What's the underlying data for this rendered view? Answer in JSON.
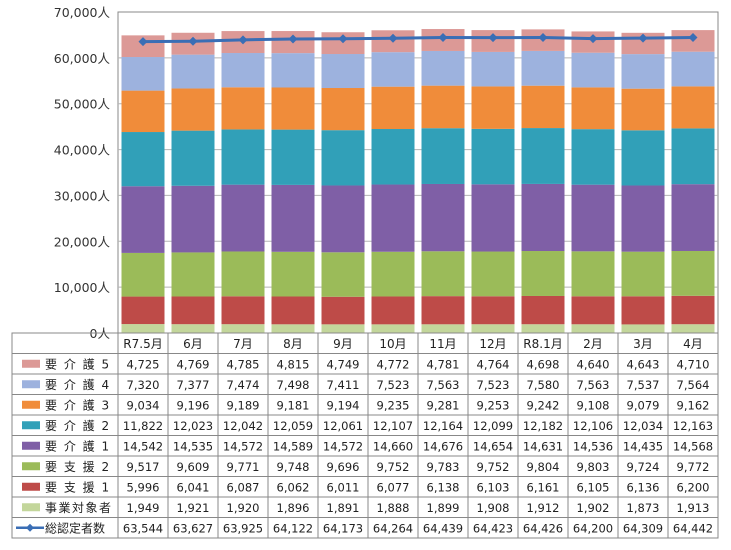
{
  "chart_data": {
    "type": "bar",
    "stacked": true,
    "categories": [
      "R7.5月",
      "6月",
      "7月",
      "8月",
      "9月",
      "10月",
      "11月",
      "12月",
      "R8.1月",
      "2月",
      "3月",
      "4月"
    ],
    "y_ticks": [
      "0人",
      "10,000人",
      "20,000人",
      "30,000人",
      "40,000人",
      "50,000人",
      "60,000人",
      "70,000人"
    ],
    "ylim": [
      0,
      70000
    ],
    "grid": true,
    "legend": "table-below",
    "series": [
      {
        "name": "事業対象者",
        "color": "#c3d69b",
        "values": [
          1949,
          1921,
          1920,
          1896,
          1891,
          1888,
          1899,
          1908,
          1912,
          1902,
          1873,
          1913
        ],
        "labels": [
          "1,949",
          "1,921",
          "1,920",
          "1,896",
          "1,891",
          "1,888",
          "1,899",
          "1,908",
          "1,912",
          "1,902",
          "1,873",
          "1,913"
        ]
      },
      {
        "name": "要 支 援 1",
        "color": "#be4b48",
        "values": [
          5996,
          6041,
          6087,
          6062,
          6011,
          6077,
          6138,
          6103,
          6161,
          6105,
          6136,
          6200
        ],
        "labels": [
          "5,996",
          "6,041",
          "6,087",
          "6,062",
          "6,011",
          "6,077",
          "6,138",
          "6,103",
          "6,161",
          "6,105",
          "6,136",
          "6,200"
        ]
      },
      {
        "name": "要 支 援 2",
        "color": "#9bbb59",
        "values": [
          9517,
          9609,
          9771,
          9748,
          9696,
          9752,
          9783,
          9752,
          9804,
          9803,
          9724,
          9772
        ],
        "labels": [
          "9,517",
          "9,609",
          "9,771",
          "9,748",
          "9,696",
          "9,752",
          "9,783",
          "9,752",
          "9,804",
          "9,803",
          "9,724",
          "9,772"
        ]
      },
      {
        "name": "要 介 護 1",
        "color": "#7f5fa6",
        "values": [
          14542,
          14535,
          14572,
          14589,
          14572,
          14660,
          14676,
          14654,
          14631,
          14536,
          14435,
          14568
        ],
        "labels": [
          "14,542",
          "14,535",
          "14,572",
          "14,589",
          "14,572",
          "14,660",
          "14,676",
          "14,654",
          "14,631",
          "14,536",
          "14,435",
          "14,568"
        ]
      },
      {
        "name": "要 介 護 2",
        "color": "#31a0b8",
        "values": [
          11822,
          12023,
          12042,
          12059,
          12061,
          12107,
          12164,
          12099,
          12182,
          12106,
          12034,
          12163
        ],
        "labels": [
          "11,822",
          "12,023",
          "12,042",
          "12,059",
          "12,061",
          "12,107",
          "12,164",
          "12,099",
          "12,182",
          "12,106",
          "12,034",
          "12,163"
        ]
      },
      {
        "name": "要 介 護 3",
        "color": "#f08c3a",
        "values": [
          9034,
          9196,
          9189,
          9181,
          9194,
          9235,
          9281,
          9253,
          9242,
          9108,
          9079,
          9162
        ],
        "labels": [
          "9,034",
          "9,196",
          "9,189",
          "9,181",
          "9,194",
          "9,235",
          "9,281",
          "9,253",
          "9,242",
          "9,108",
          "9,079",
          "9,162"
        ]
      },
      {
        "name": "要 介 護 4",
        "color": "#9db2de",
        "values": [
          7320,
          7377,
          7474,
          7498,
          7411,
          7523,
          7563,
          7523,
          7580,
          7563,
          7537,
          7564
        ],
        "labels": [
          "7,320",
          "7,377",
          "7,474",
          "7,498",
          "7,411",
          "7,523",
          "7,563",
          "7,523",
          "7,580",
          "7,563",
          "7,537",
          "7,564"
        ]
      },
      {
        "name": "要 介 護 5",
        "color": "#dc9996",
        "values": [
          4725,
          4769,
          4785,
          4815,
          4749,
          4772,
          4781,
          4764,
          4698,
          4640,
          4643,
          4710
        ],
        "labels": [
          "4,725",
          "4,769",
          "4,785",
          "4,815",
          "4,749",
          "4,772",
          "4,781",
          "4,764",
          "4,698",
          "4,640",
          "4,643",
          "4,710"
        ]
      }
    ],
    "line_series": {
      "name": "総認定者数",
      "color": "#3a6eb5",
      "values": [
        63544,
        63627,
        63925,
        64122,
        64173,
        64264,
        64439,
        64423,
        64426,
        64200,
        64309,
        64442
      ],
      "labels": [
        "63,544",
        "63,627",
        "63,925",
        "64,122",
        "64,173",
        "64,264",
        "64,439",
        "64,423",
        "64,426",
        "64,200",
        "64,309",
        "64,442"
      ]
    }
  }
}
